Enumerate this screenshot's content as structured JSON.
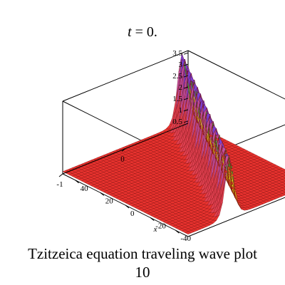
{
  "title": {
    "var": "t",
    "rest": " = 0."
  },
  "caption": {
    "line1": "Tzitzeica equation  traveling wave plot",
    "line2": "10"
  },
  "chart_data": {
    "type": "surface3d",
    "title": "t = 0.",
    "xlabel": "x",
    "ylabel": "",
    "zlabel": "",
    "x_range": [
      -50,
      50
    ],
    "y_range": [
      -1,
      1
    ],
    "z_range": [
      0.4,
      3.6
    ],
    "x_ticks": [
      -40,
      -20,
      0,
      20,
      40
    ],
    "y_ticks": [
      -1,
      0
    ],
    "z_ticks": [
      0.5,
      1,
      1.5,
      2,
      2.5,
      3,
      3.5
    ],
    "baseline": 0.5,
    "wave_peak": 3.6,
    "wave_centre_x": 0,
    "box": true,
    "colors": {
      "surface_base": "#e8322e",
      "grid_lines": "#6b0000",
      "ridge_top": "#7b3fd0",
      "ridge_mid": "#e0e020",
      "ridge_side": "#38c040"
    }
  }
}
